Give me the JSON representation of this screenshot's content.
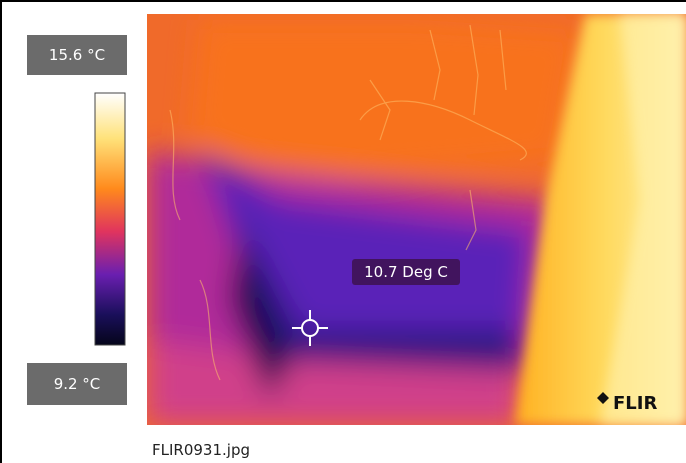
{
  "scale": {
    "max_label": "15.6 °C",
    "min_label": "9.2 °C"
  },
  "spot": {
    "label": "10.7 Deg C"
  },
  "logo": "FLIR",
  "caption": "FLIR0931.jpg"
}
